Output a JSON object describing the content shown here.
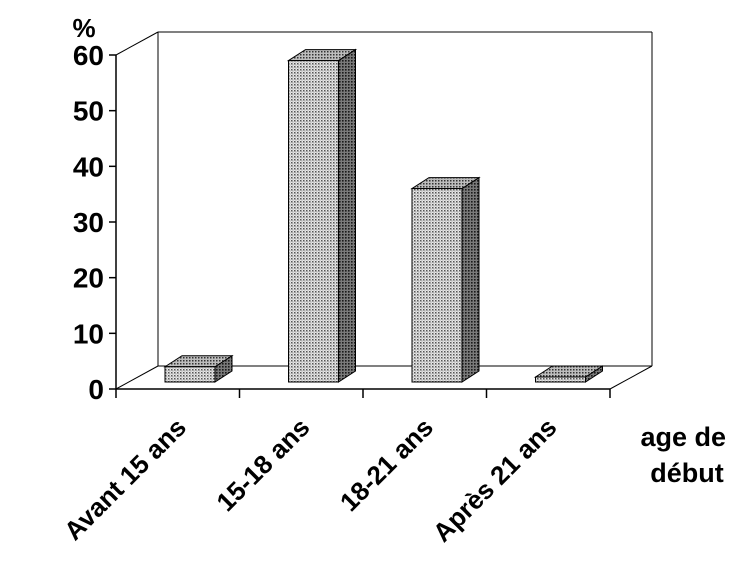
{
  "chart_data": {
    "type": "bar",
    "title": "",
    "ylabel": "%",
    "xlabel": "age de début",
    "xlabel_lines": [
      "age de",
      "début"
    ],
    "categories": [
      "Avant 15 ans",
      "15-18 ans",
      "18-21 ans",
      "Après 21 ans"
    ],
    "values": [
      4,
      59,
      36,
      1
    ],
    "ylim": [
      0,
      60
    ],
    "yticks": [
      0,
      10,
      20,
      30,
      40,
      50,
      60
    ],
    "grid": false,
    "three_d": true,
    "bar_fill": "pattern-dotted-gray",
    "colors": {
      "bar_front": "#c8c8c8",
      "bar_top": "#8a8a8a",
      "bar_side": "#5a5a5a",
      "axis": "#000000",
      "wall": "#000000"
    }
  }
}
